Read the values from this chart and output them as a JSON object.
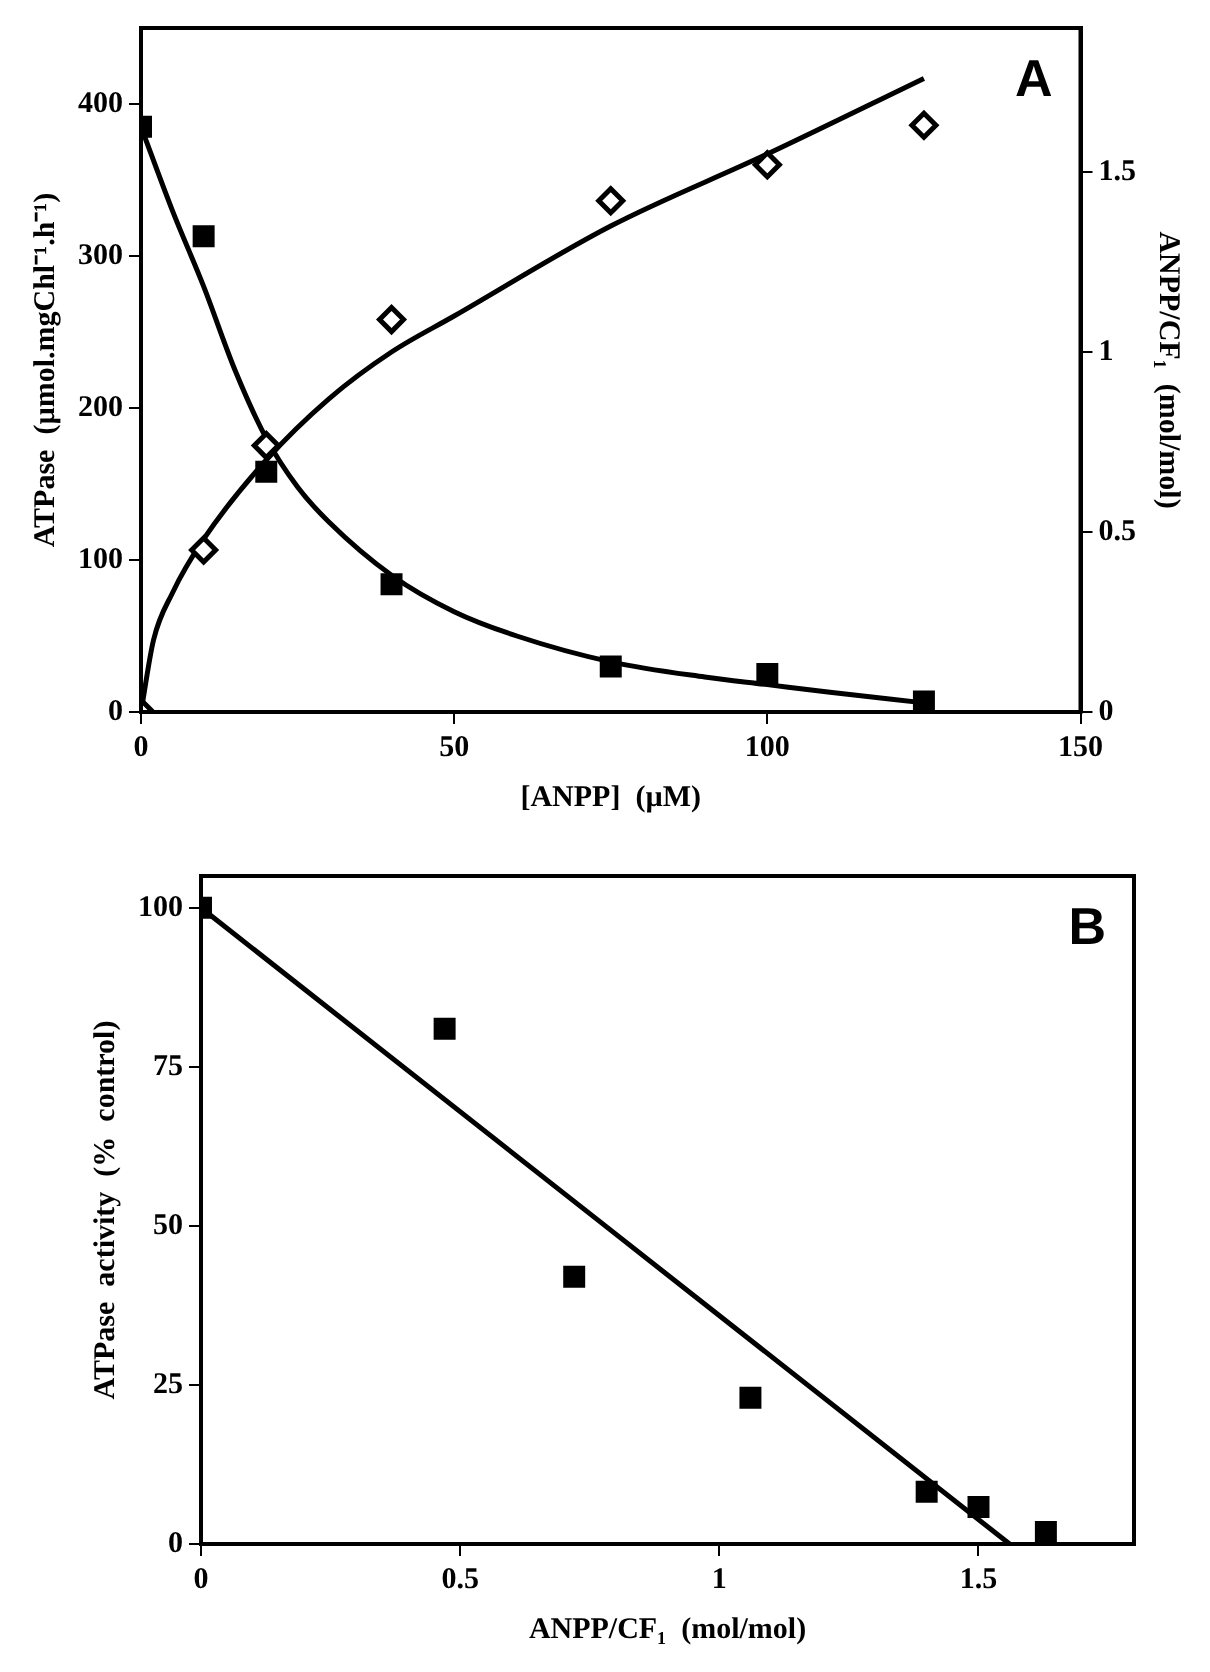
{
  "chart_data": [
    {
      "type": "scatter",
      "xlabel": "[ANPP]  (µM)",
      "ylabel": "ATPase  (µmol.mgChl⁻¹.h⁻¹)",
      "y2label": "ANPP/CF₁  (mol/mol)",
      "xlim": [
        0,
        150
      ],
      "xticks": [
        0,
        50,
        100,
        150
      ],
      "ylim": [
        0,
        450
      ],
      "yticks": [
        0,
        100,
        200,
        300,
        400
      ],
      "y2lim": [
        0,
        1.9
      ],
      "y2ticks": [
        0,
        0.5,
        1,
        1.5
      ],
      "grid": false,
      "legend": false,
      "annotations": [
        "A"
      ],
      "series": [
        {
          "color": "#000000",
          "marker": "square",
          "x": [
            0,
            10,
            20,
            40,
            75,
            100,
            125
          ],
          "values": [
            385,
            313,
            158,
            84,
            30,
            25,
            7
          ]
        },
        {
          "color": "#000000",
          "marker": "diamond",
          "axis": "y2",
          "x": [
            0,
            10,
            20,
            40,
            75,
            100,
            125
          ],
          "values": [
            0,
            0.45,
            0.74,
            1.09,
            1.42,
            1.52,
            1.63
          ]
        },
        {
          "type": "line",
          "color": "#000000",
          "marker": "none",
          "x": [
            0,
            5,
            10,
            15,
            20,
            25,
            30,
            40,
            50,
            60,
            75,
            90,
            100,
            110,
            125
          ],
          "values": [
            385,
            330,
            280,
            225,
            180,
            148,
            125,
            90,
            66,
            50,
            33,
            23,
            18,
            13,
            6
          ]
        },
        {
          "type": "line",
          "color": "#000000",
          "marker": "none",
          "axis": "y2",
          "x": [
            0,
            2,
            5,
            10,
            20,
            30,
            40,
            50,
            75,
            100,
            125
          ],
          "values": [
            0,
            0.2,
            0.33,
            0.48,
            0.7,
            0.87,
            1.0,
            1.1,
            1.35,
            1.55,
            1.76
          ]
        }
      ]
    },
    {
      "type": "scatter",
      "xlabel": "ANPP/CF₁  (mol/mol)",
      "ylabel": "ATPase  activity  (%  control)",
      "xlim": [
        0,
        1.8
      ],
      "xticks": [
        0,
        0.5,
        1,
        1.5
      ],
      "ylim": [
        0,
        105
      ],
      "yticks": [
        0,
        25,
        50,
        75,
        100
      ],
      "grid": false,
      "legend": false,
      "annotations": [
        "B"
      ],
      "series": [
        {
          "color": "#000000",
          "marker": "square",
          "x": [
            0,
            0.47,
            0.72,
            1.06,
            1.4,
            1.5,
            1.63
          ],
          "values": [
            100,
            81,
            42,
            23,
            8.2,
            5.8,
            1.9
          ]
        },
        {
          "type": "line",
          "color": "#000000",
          "marker": "none",
          "x": [
            0,
            1.56
          ],
          "values": [
            100,
            0
          ]
        }
      ]
    }
  ]
}
